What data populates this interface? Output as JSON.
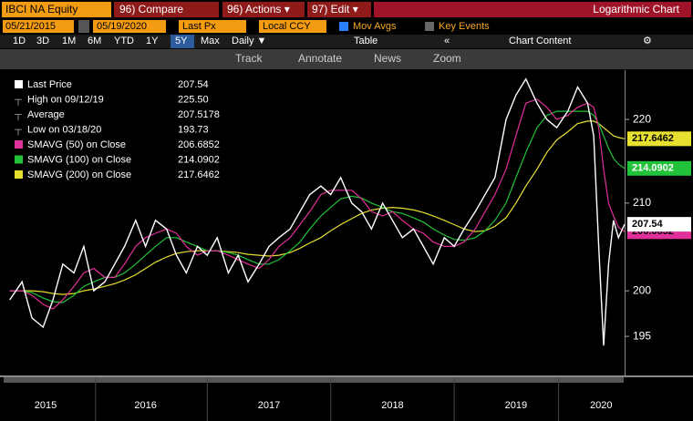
{
  "toolbar": {
    "ticker": "IBCI NA Equity",
    "compare": "96) Compare",
    "actions": "96) Actions ▾",
    "edit": "97) Edit ▾",
    "view": "Logarithmic Chart",
    "start_date": "05/21/2015",
    "end_date": "05/19/2020",
    "field": "Last Px",
    "currency": "Local CCY",
    "mov_avgs": "Mov Avgs",
    "key_events": "Key Events",
    "ranges": [
      "1D",
      "3D",
      "1M",
      "6M",
      "YTD",
      "1Y",
      "5Y",
      "Max"
    ],
    "frequency": "Daily ▼",
    "table": "Table",
    "chart_content": "Chart Content",
    "tools": [
      "Track",
      "Annotate",
      "News",
      "Zoom"
    ]
  },
  "chart_data": {
    "type": "line",
    "log_scale": true,
    "grid": false,
    "stats": [
      {
        "label": "High on 09/12/19",
        "value": "225.50"
      },
      {
        "label": "Average",
        "value": "207.5178"
      },
      {
        "label": "Low on 03/18/20",
        "value": "193.73"
      }
    ],
    "x": [
      2015.4,
      2015.5,
      2015.58,
      2015.67,
      2015.75,
      2015.83,
      2015.92,
      2016.0,
      2016.08,
      2016.17,
      2016.25,
      2016.33,
      2016.42,
      2016.5,
      2016.58,
      2016.67,
      2016.75,
      2016.83,
      2016.92,
      2017.0,
      2017.08,
      2017.17,
      2017.25,
      2017.33,
      2017.42,
      2017.5,
      2017.58,
      2017.67,
      2017.75,
      2017.83,
      2017.92,
      2018.0,
      2018.08,
      2018.17,
      2018.25,
      2018.33,
      2018.42,
      2018.5,
      2018.58,
      2018.67,
      2018.75,
      2018.83,
      2018.92,
      2019.0,
      2019.08,
      2019.17,
      2019.25,
      2019.33,
      2019.42,
      2019.5,
      2019.58,
      2019.67,
      2019.75,
      2019.83,
      2019.92,
      2020.0,
      2020.08,
      2020.13,
      2020.17,
      2020.21,
      2020.25,
      2020.29,
      2020.33,
      2020.38
    ],
    "series": [
      {
        "name": "Last Price",
        "color": "#ffffff",
        "values": [
          199,
          201,
          197,
          196,
          199,
          203,
          202,
          205,
          200,
          201,
          203,
          205,
          208,
          205,
          208,
          207,
          204,
          202,
          205,
          204,
          206,
          202,
          204,
          201,
          203,
          205,
          206,
          207,
          209,
          211,
          212,
          211,
          213,
          210,
          209,
          207,
          210,
          208,
          206,
          207,
          205,
          203,
          206,
          205,
          207,
          209,
          211,
          213,
          220,
          223,
          225,
          222,
          220,
          219,
          221,
          224,
          222,
          218,
          205,
          194,
          203,
          208,
          206,
          207.54
        ]
      },
      {
        "name": "SMAVG (50)  on Close",
        "color": "#e0309a",
        "values": [
          200,
          200,
          199.5,
          198.5,
          198,
          199,
          200.5,
          202,
          202.5,
          201.5,
          201.5,
          203,
          205,
          206,
          206.5,
          207,
          206.5,
          205,
          204,
          204.5,
          204.5,
          204,
          203.5,
          203,
          202.5,
          203.5,
          205,
          206,
          207.5,
          209,
          211,
          211.5,
          211.5,
          211.5,
          210.5,
          209,
          208.5,
          209,
          208,
          207,
          206.5,
          205.5,
          205,
          205,
          205.5,
          207,
          209,
          211,
          214,
          218,
          222,
          222.5,
          221.5,
          220,
          220.5,
          221.5,
          222,
          221.5,
          219,
          214,
          210,
          208.5,
          207.2,
          206.6852
        ]
      },
      {
        "name": "SMAVG (100)  on Close",
        "color": "#22c23a",
        "values": [
          200,
          200,
          199.8,
          199.2,
          198.8,
          198.7,
          199.5,
          200.5,
          201,
          201.5,
          201.5,
          202,
          203,
          204,
          205,
          206,
          206,
          205.5,
          205,
          204.5,
          204.5,
          204.3,
          204,
          203.5,
          203,
          203,
          203.5,
          204.5,
          205.5,
          207,
          208.5,
          209.5,
          210.5,
          210.8,
          210.6,
          210,
          209.5,
          209,
          208.8,
          208.3,
          207.8,
          207,
          206.3,
          205.8,
          205.7,
          206,
          206.8,
          208,
          210,
          213,
          216,
          219,
          220.5,
          221,
          221,
          221,
          221,
          220.5,
          219.5,
          218,
          216.5,
          215.3,
          214.6,
          214.0902
        ]
      },
      {
        "name": "SMAVG (200)  on Close",
        "color": "#e8e030",
        "values": [
          200,
          200,
          200,
          199.9,
          199.7,
          199.6,
          199.7,
          200,
          200.2,
          200.5,
          200.8,
          201.2,
          201.8,
          202.5,
          203.2,
          203.8,
          204.2,
          204.4,
          204.5,
          204.5,
          204.5,
          204.4,
          204.3,
          204.1,
          204,
          203.9,
          204,
          204.3,
          204.8,
          205.4,
          206,
          206.8,
          207.5,
          208.2,
          208.8,
          209.2,
          209.4,
          209.5,
          209.4,
          209.2,
          208.9,
          208.5,
          208,
          207.5,
          207,
          206.7,
          206.8,
          207.3,
          208.3,
          210,
          212,
          214,
          216,
          217.5,
          218.5,
          219.5,
          219.8,
          219.8,
          219.5,
          219,
          218.5,
          218,
          217.8,
          217.6462
        ]
      }
    ],
    "xlim": [
      2015.38,
      2020.38
    ],
    "xticks": [
      {
        "value": 2015.69,
        "label": "2015"
      },
      {
        "value": 2016.5,
        "label": "2016"
      },
      {
        "value": 2017.5,
        "label": "2017"
      },
      {
        "value": 2018.5,
        "label": "2018"
      },
      {
        "value": 2019.5,
        "label": "2019"
      },
      {
        "value": 2020.19,
        "label": "2020"
      }
    ],
    "ylim": [
      191,
      226
    ],
    "yticks": [
      195,
      200,
      210,
      220
    ]
  }
}
